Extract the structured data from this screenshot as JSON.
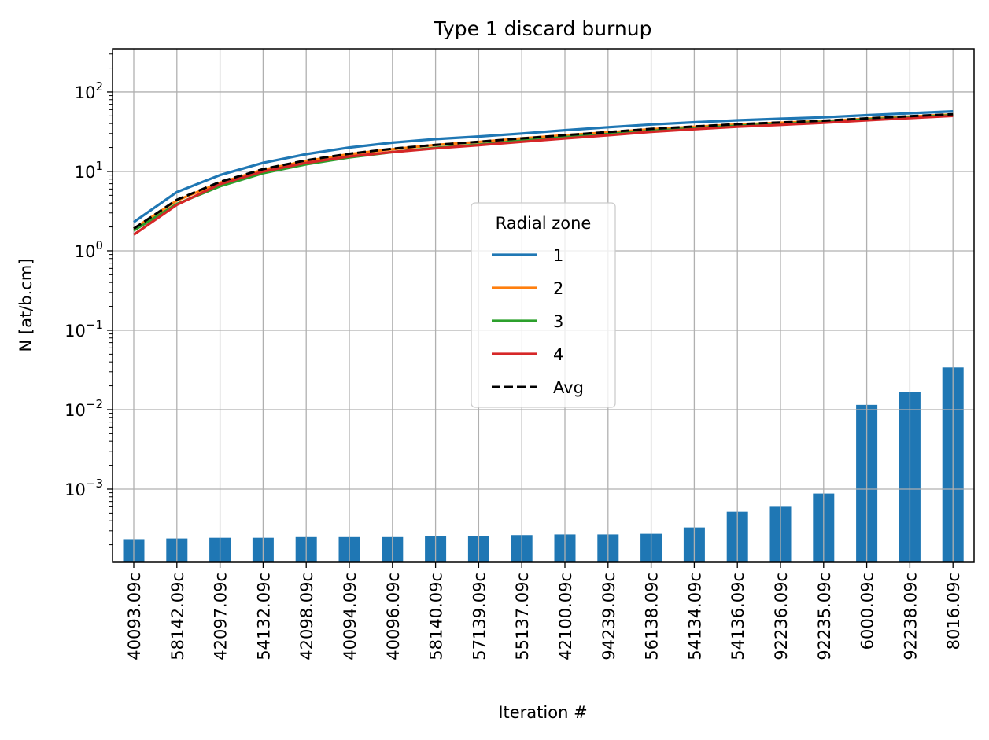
{
  "chart_data": {
    "type": "bar",
    "title": "Type 1 discard burnup",
    "xlabel": "Iteration #",
    "ylabel": "N [at/b.cm]",
    "yscale": "log",
    "ylim": [
      0.00012,
      350
    ],
    "yticks": [
      0.001,
      0.01,
      0.1,
      1,
      10,
      100
    ],
    "grid": true,
    "categories": [
      "40093.09c",
      "58142.09c",
      "42097.09c",
      "54132.09c",
      "42098.09c",
      "40094.09c",
      "40096.09c",
      "58140.09c",
      "57139.09c",
      "55137.09c",
      "42100.09c",
      "94239.09c",
      "56138.09c",
      "54134.09c",
      "54136.09c",
      "92236.09c",
      "92235.09c",
      "6000.09c",
      "92238.09c",
      "8016.09c"
    ],
    "bar_values": [
      0.00023,
      0.00024,
      0.000245,
      0.000245,
      0.00025,
      0.00025,
      0.00025,
      0.000255,
      0.00026,
      0.000265,
      0.00027,
      0.00027,
      0.000275,
      0.00033,
      0.00052,
      0.0006,
      0.00088,
      0.0115,
      0.0168,
      0.034
    ],
    "bar_color": "#1f77b4",
    "legend": {
      "title": "Radial zone",
      "position": "center"
    },
    "series": [
      {
        "name": "1",
        "color": "#1f77b4",
        "style": "solid",
        "values": [
          2.3,
          5.5,
          9,
          12.8,
          16.5,
          20,
          23,
          25.5,
          27.5,
          30,
          33,
          36,
          39,
          41.5,
          44,
          46,
          48,
          51,
          54,
          57
        ]
      },
      {
        "name": "2",
        "color": "#ff7f0e",
        "style": "solid",
        "values": [
          1.9,
          4.3,
          7.2,
          10.5,
          13.5,
          16.5,
          19,
          21.5,
          23.5,
          26,
          28.5,
          31,
          34,
          36.5,
          39,
          41,
          43,
          46,
          49,
          52
        ]
      },
      {
        "name": "3",
        "color": "#2ca02c",
        "style": "solid",
        "values": [
          1.8,
          3.9,
          6.5,
          9.5,
          12.3,
          15,
          17.5,
          19.8,
          21.8,
          24.3,
          27,
          29.5,
          32.5,
          35,
          37.5,
          39.5,
          42,
          45,
          48,
          51
        ]
      },
      {
        "name": "4",
        "color": "#d62728",
        "style": "solid",
        "values": [
          1.6,
          3.8,
          6.9,
          10,
          12.8,
          15.4,
          17.5,
          19.5,
          21.4,
          23.6,
          26,
          28.5,
          31.5,
          34,
          36.5,
          38.5,
          41,
          44,
          47,
          50
        ]
      },
      {
        "name": "Avg",
        "color": "#000000",
        "style": "dashed",
        "values": [
          1.9,
          4.4,
          7.4,
          10.7,
          13.8,
          16.7,
          19.3,
          21.6,
          23.6,
          26,
          28.6,
          31.3,
          34.3,
          36.8,
          39.3,
          41.3,
          43.5,
          46.5,
          49.5,
          52.5
        ]
      }
    ]
  }
}
